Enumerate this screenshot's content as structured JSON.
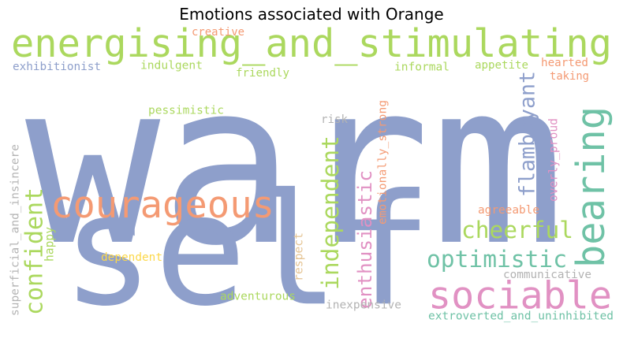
{
  "chart_data": {
    "type": "wordcloud",
    "title": "Emotions associated with Orange",
    "palette": {
      "blue": "#8e9fcb",
      "orange": "#f49a73",
      "green": "#abd85e",
      "teal": "#6fc2a6",
      "pink": "#e191c3",
      "yellow": "#fcd84a",
      "tan": "#e5c494",
      "gray": "#b3b3b3"
    },
    "words": [
      {
        "text": "warm",
        "color": "#8e9fcb"
      },
      {
        "text": "self",
        "color": "#8e9fcb"
      },
      {
        "text": "energising_and_stimulating",
        "color": "#abd85e"
      },
      {
        "text": "courageous",
        "color": "#f49a73"
      },
      {
        "text": "sociable",
        "color": "#e191c3"
      },
      {
        "text": "bearing",
        "color": "#6fc2a6"
      },
      {
        "text": "optimistic",
        "color": "#6fc2a6"
      },
      {
        "text": "cheerful",
        "color": "#abd85e"
      },
      {
        "text": "confident",
        "color": "#abd85e"
      },
      {
        "text": "independent",
        "color": "#abd85e"
      },
      {
        "text": "enthusiastic",
        "color": "#e191c3"
      },
      {
        "text": "flamboyant",
        "color": "#8e9fcb"
      },
      {
        "text": "extroverted_and_uninhibited",
        "color": "#6fc2a6"
      },
      {
        "text": "creative",
        "color": "#f49a73"
      },
      {
        "text": "exhibitionist",
        "color": "#8e9fcb"
      },
      {
        "text": "indulgent",
        "color": "#abd85e"
      },
      {
        "text": "friendly",
        "color": "#abd85e"
      },
      {
        "text": "informal",
        "color": "#abd85e"
      },
      {
        "text": "appetite",
        "color": "#abd85e"
      },
      {
        "text": "hearted",
        "color": "#f49a73"
      },
      {
        "text": "taking",
        "color": "#f49a73"
      },
      {
        "text": "pessimistic",
        "color": "#abd85e"
      },
      {
        "text": "risk",
        "color": "#b3b3b3"
      },
      {
        "text": "emotionally_strong",
        "color": "#f49a73"
      },
      {
        "text": "overly_proud",
        "color": "#e191c3"
      },
      {
        "text": "superficial_and_insincere",
        "color": "#b3b3b3"
      },
      {
        "text": "happy",
        "color": "#abd85e"
      },
      {
        "text": "agreeable",
        "color": "#f49a73"
      },
      {
        "text": "dependent",
        "color": "#fcd84a"
      },
      {
        "text": "respect",
        "color": "#e5c494"
      },
      {
        "text": "communicative",
        "color": "#b3b3b3"
      },
      {
        "text": "adventurous",
        "color": "#abd85e"
      },
      {
        "text": "inexpensive",
        "color": "#b3b3b3"
      }
    ]
  }
}
